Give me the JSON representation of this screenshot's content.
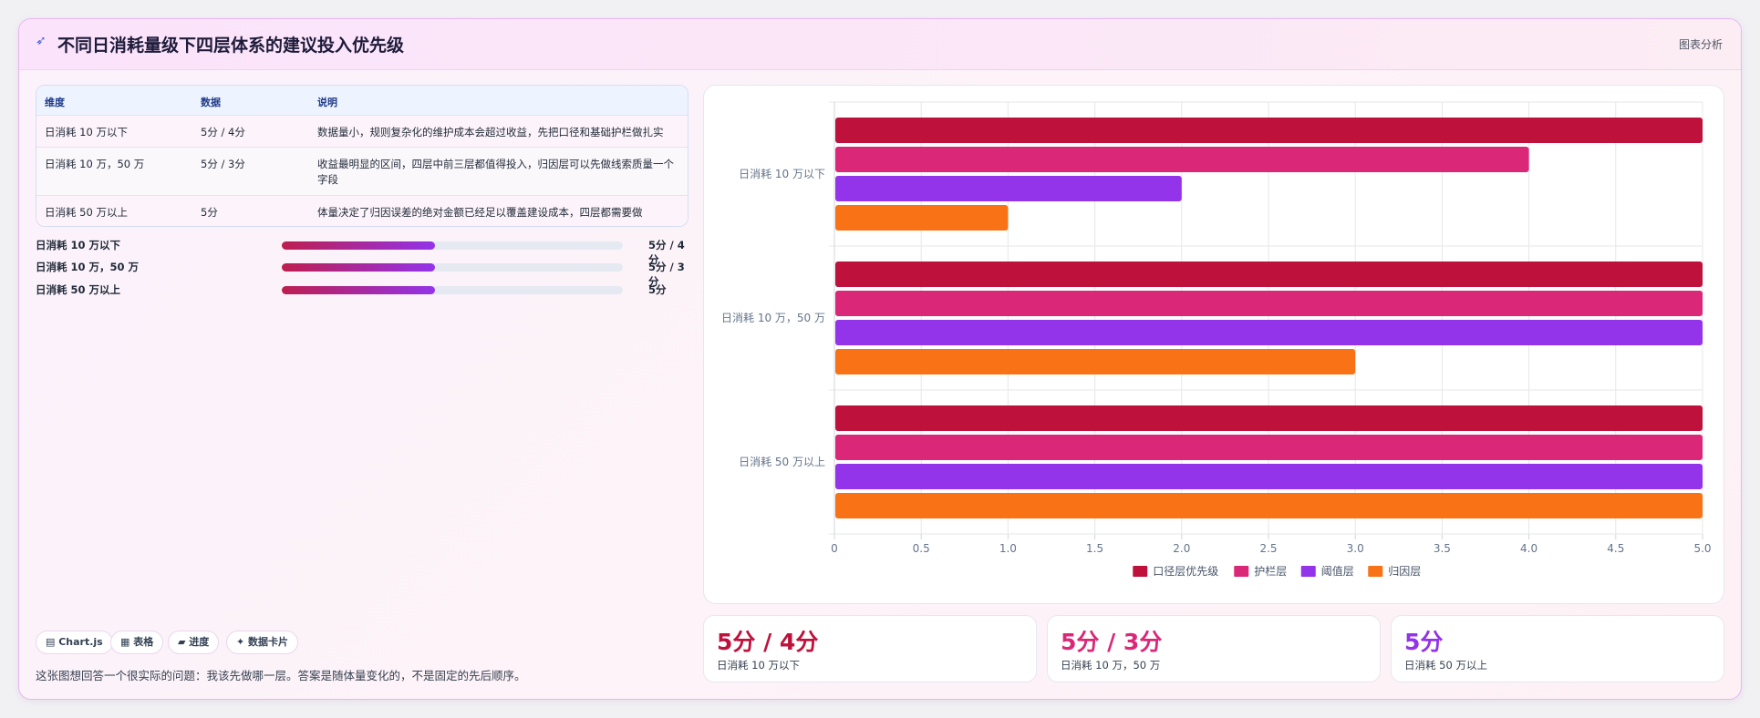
{
  "header": {
    "title": "不同日消耗量级下四层体系的建议投入优先级",
    "right_label": "图表分析",
    "icon": "sparkle-arrow-icon"
  },
  "table": {
    "headers": [
      "维度",
      "数据",
      "说明"
    ],
    "rows": [
      [
        "日消耗 10 万以下",
        "5分 / 4分",
        "数据量小，规则复杂化的维护成本会超过收益，先把口径和基础护栏做扎实"
      ],
      [
        "日消耗 10 万，50 万",
        "5分 / 3分",
        "收益最明显的区间，四层中前三层都值得投入，归因层可以先做线索质量一个字段"
      ],
      [
        "日消耗 50 万以上",
        "5分",
        "体量决定了归因误差的绝对金额已经足以覆盖建设成本，四层都需要做"
      ]
    ]
  },
  "progress": [
    {
      "label": "日消耗 10 万以下",
      "value": "5分 / 4分",
      "fraction": 0.45
    },
    {
      "label": "日消耗 10 万，50 万",
      "value": "5分 / 3分",
      "fraction": 0.45
    },
    {
      "label": "日消耗 50 万以上",
      "value": "5分",
      "fraction": 0.45
    }
  ],
  "chips": [
    "▤ Chart.js",
    "▦ 表格",
    "▰ 进度",
    "✦ 数据卡片"
  ],
  "footnote": "这张图想回答一个很实际的问题：我该先做哪一层。答案是随体量变化的，不是固定的先后顺序。",
  "stats": [
    {
      "value": "5分 / 4分",
      "label": "日消耗 10 万以下",
      "color": "#be123c"
    },
    {
      "value": "5分 / 3分",
      "label": "日消耗 10 万，50 万",
      "color": "#db2777"
    },
    {
      "value": "5分",
      "label": "日消耗 50 万以上",
      "color": "#9333ea"
    }
  ],
  "chart_data": {
    "type": "bar",
    "orientation": "horizontal",
    "categories": [
      "日消耗 10 万以下",
      "日消耗 10 万，50 万",
      "日消耗 50 万以上"
    ],
    "series": [
      {
        "name": "口径层优先级",
        "color": "#be123c",
        "values": [
          5,
          5,
          5
        ]
      },
      {
        "name": "护栏层",
        "color": "#db2777",
        "values": [
          4,
          5,
          5
        ]
      },
      {
        "name": "阈值层",
        "color": "#9333ea",
        "values": [
          2,
          5,
          5
        ]
      },
      {
        "name": "归因层",
        "color": "#f97316",
        "values": [
          1,
          3,
          5
        ]
      }
    ],
    "xlim": [
      0,
      5
    ],
    "xticks": [
      "0",
      "0.5",
      "1.0",
      "1.5",
      "2.0",
      "2.5",
      "3.0",
      "3.5",
      "4.0",
      "4.5",
      "5.0"
    ],
    "grid": true,
    "legend": "bottom"
  }
}
